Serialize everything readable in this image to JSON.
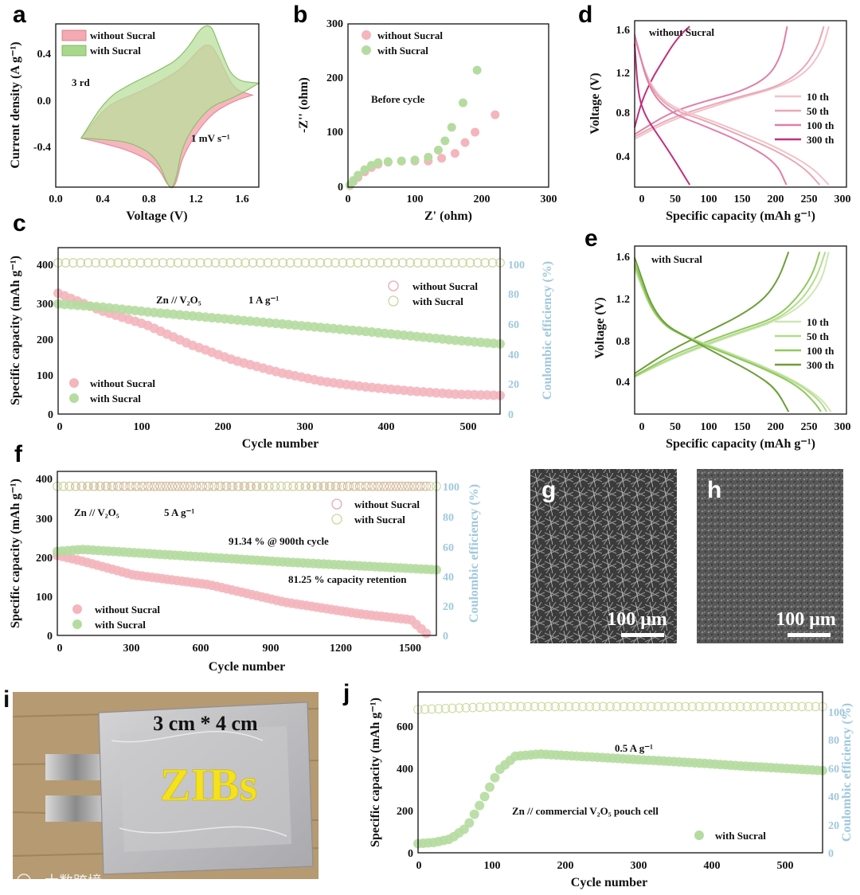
{
  "panels": {
    "a": {
      "label": "a",
      "xlabel": "Voltage (V)",
      "ylabel": "Current density (A g⁻¹)",
      "xticks": [
        "0.0",
        "0.4",
        "0.8",
        "1.2",
        "1.6"
      ],
      "yticks": [
        "0.4",
        "0.0",
        "-0.4"
      ],
      "legend": [
        "without Sucral",
        "with Sucral"
      ],
      "annot_cycle": "3 rd",
      "annot_rate": "1 mV s⁻¹"
    },
    "b": {
      "label": "b",
      "xlabel": "Z' (ohm)",
      "ylabel": "-Z'' (ohm)",
      "xticks": [
        "0",
        "100",
        "200",
        "300"
      ],
      "yticks": [
        "0",
        "100",
        "200",
        "300"
      ],
      "legend": [
        "without Sucral",
        "with Sucral"
      ],
      "annot": "Before cycle"
    },
    "c": {
      "label": "c",
      "xlabel": "Cycle number",
      "ylabel": "Specific capacity (mAh g⁻¹)",
      "y2label": "Coulombic efficiency (%)",
      "xticks": [
        "0",
        "100",
        "200",
        "300",
        "400",
        "500"
      ],
      "yticks": [
        "0",
        "100",
        "200",
        "300",
        "400"
      ],
      "y2ticks": [
        "0",
        "20",
        "40",
        "60",
        "80",
        "100"
      ],
      "legend": [
        "without Sucral",
        "with Sucral"
      ],
      "annot_cell": "Zn // V₂O₅",
      "annot_rate": "1 A g⁻¹"
    },
    "d": {
      "label": "d",
      "xlabel": "Specific capacity (mAh g⁻¹)",
      "ylabel": "Voltage (V)",
      "xticks": [
        "0",
        "50",
        "100",
        "150",
        "200",
        "250",
        "300"
      ],
      "yticks": [
        "0.4",
        "0.8",
        "1.2",
        "1.6"
      ],
      "title": "without Sucral",
      "legend": [
        "10 th",
        "50 th",
        "100 th",
        "300 th"
      ]
    },
    "e": {
      "label": "e",
      "xlabel": "Specific capacity (mAh g⁻¹)",
      "ylabel": "Voltage (V)",
      "xticks": [
        "0",
        "50",
        "100",
        "150",
        "200",
        "250",
        "300"
      ],
      "yticks": [
        "0.4",
        "0.8",
        "1.2",
        "1.6"
      ],
      "title": "with Sucral",
      "legend": [
        "10 th",
        "50 th",
        "100 th",
        "300 th"
      ]
    },
    "f": {
      "label": "f",
      "xlabel": "Cycle number",
      "ylabel": "Specific capacity (mAh g⁻¹)",
      "y2label": "Coulombic efficiency (%)",
      "xticks": [
        "0",
        "300",
        "600",
        "900",
        "1200",
        "1500"
      ],
      "yticks": [
        "0",
        "100",
        "200",
        "300",
        "400"
      ],
      "y2ticks": [
        "0",
        "20",
        "40",
        "60",
        "80",
        "100"
      ],
      "legend": [
        "without Sucral",
        "with Sucral"
      ],
      "annot_cell": "Zn // V₂O₅",
      "annot_rate": "5 A g⁻¹",
      "annot_ce": "91.34 % @ 900th cycle",
      "annot_ret": "81.25 % capacity retention"
    },
    "g": {
      "label": "g",
      "scale": "100 μm"
    },
    "h": {
      "label": "h",
      "scale": "100 μm"
    },
    "i": {
      "label": "i",
      "size": "3 cm * 4 cm",
      "text": "ZIBs"
    },
    "j": {
      "label": "j",
      "xlabel": "Cycle number",
      "ylabel": "Specific capacity (mAh g⁻¹)",
      "y2label": "Coulombic efficiency (%)",
      "xticks": [
        "0",
        "100",
        "200",
        "300",
        "400",
        "500"
      ],
      "yticks": [
        "0",
        "200",
        "400",
        "600"
      ],
      "y2ticks": [
        "0",
        "20",
        "40",
        "60",
        "80",
        "100"
      ],
      "legend": [
        "with Sucral"
      ],
      "annot_rate": "0.5 A g⁻¹",
      "annot_cell": "Zn // commercial V₂O₅    pouch cell"
    }
  },
  "watermark": "大数跨境",
  "colors": {
    "pink": "#f4a9b3",
    "green": "#a9d88c",
    "ce": "#9fc8dc",
    "d_lines": [
      "#f3c1c8",
      "#e9a7b6",
      "#df7fa8",
      "#c0307f"
    ],
    "e_lines": [
      "#cfe6b4",
      "#b3dc8c",
      "#8fc95c",
      "#6e9e3a"
    ]
  },
  "chart_data": [
    {
      "panel": "a",
      "type": "line",
      "title": "",
      "xlabel": "Voltage (V)",
      "ylabel": "Current density (A g-1)",
      "xlim": [
        0,
        1.6
      ],
      "ylim": [
        -0.6,
        0.5
      ],
      "series": [
        {
          "name": "without Sucral",
          "x": [
            0.2,
            0.4,
            0.6,
            0.8,
            0.9,
            0.95,
            1.0,
            1.2,
            1.4,
            1.55,
            1.55,
            1.4,
            1.3,
            1.2,
            1.0,
            0.8,
            0.6,
            0.4,
            0.2
          ],
          "y": [
            -0.27,
            -0.31,
            -0.36,
            -0.45,
            -0.62,
            -0.58,
            -0.38,
            -0.12,
            -0.02,
            0.02,
            0.02,
            0.06,
            0.25,
            0.4,
            0.2,
            0.1,
            0.02,
            -0.05,
            -0.27
          ]
        },
        {
          "name": "with Sucral",
          "x": [
            0.2,
            0.4,
            0.6,
            0.8,
            0.9,
            0.95,
            1.0,
            1.2,
            1.4,
            1.6,
            1.6,
            1.4,
            1.3,
            1.2,
            1.0,
            0.8,
            0.6,
            0.4,
            0.2
          ],
          "y": [
            -0.27,
            -0.28,
            -0.3,
            -0.4,
            -0.63,
            -0.55,
            -0.3,
            -0.06,
            0.0,
            0.1,
            0.1,
            0.12,
            0.32,
            0.55,
            0.28,
            0.18,
            0.1,
            0.0,
            -0.27
          ]
        }
      ]
    },
    {
      "panel": "b",
      "type": "scatter",
      "xlim": [
        0,
        300
      ],
      "ylim": [
        0,
        300
      ],
      "series": [
        {
          "name": "without Sucral",
          "x": [
            3,
            8,
            15,
            25,
            35,
            45,
            60,
            80,
            100,
            120,
            140,
            160,
            175,
            190,
            220
          ],
          "y": [
            3,
            10,
            18,
            28,
            36,
            42,
            46,
            48,
            48,
            48,
            53,
            62,
            82,
            101,
            133
          ]
        },
        {
          "name": "with Sucral",
          "x": [
            3,
            8,
            15,
            25,
            35,
            45,
            60,
            80,
            100,
            120,
            135,
            145,
            155,
            172,
            193
          ],
          "y": [
            4,
            12,
            22,
            32,
            40,
            45,
            47,
            48,
            50,
            55,
            68,
            85,
            110,
            155,
            215
          ]
        }
      ]
    },
    {
      "panel": "c",
      "type": "scatter",
      "xlim": [
        0,
        500
      ],
      "ylim": [
        0,
        420
      ],
      "y2lim": [
        0,
        110
      ],
      "series": [
        {
          "name": "without Sucral",
          "x": [
            0,
            50,
            100,
            150,
            200,
            250,
            300,
            350,
            400,
            450,
            500
          ],
          "y": [
            305,
            260,
            225,
            175,
            135,
            105,
            82,
            68,
            58,
            50,
            47
          ]
        },
        {
          "name": "with Sucral",
          "x": [
            0,
            50,
            100,
            150,
            200,
            250,
            300,
            350,
            400,
            450,
            500
          ],
          "y": [
            278,
            270,
            258,
            248,
            238,
            228,
            218,
            208,
            197,
            186,
            177
          ]
        },
        {
          "name": "without Sucral CE",
          "x": [
            0,
            100,
            200,
            300,
            400,
            500
          ],
          "y": [
            100,
            100,
            100,
            100,
            100,
            100
          ]
        },
        {
          "name": "with Sucral CE",
          "x": [
            0,
            100,
            200,
            300,
            400,
            500
          ],
          "y": [
            100,
            100,
            100,
            100,
            100,
            100
          ]
        }
      ]
    },
    {
      "panel": "d",
      "type": "line",
      "xlim": [
        0,
        300
      ],
      "ylim": [
        0.2,
        1.65
      ],
      "series": [
        {
          "name": "10 th charge",
          "x": [
            0,
            50,
            100,
            150,
            200,
            240,
            265,
            275
          ],
          "y": [
            0.62,
            0.78,
            0.88,
            0.98,
            1.06,
            1.18,
            1.38,
            1.6
          ]
        },
        {
          "name": "50 th charge",
          "x": [
            0,
            50,
            100,
            150,
            200,
            235,
            258,
            268
          ],
          "y": [
            0.64,
            0.8,
            0.9,
            0.99,
            1.07,
            1.2,
            1.4,
            1.6
          ]
        },
        {
          "name": "100 th charge",
          "x": [
            0,
            50,
            100,
            150,
            190,
            208,
            216
          ],
          "y": [
            0.66,
            0.85,
            0.95,
            1.03,
            1.16,
            1.35,
            1.6
          ]
        },
        {
          "name": "300 th charge",
          "x": [
            0,
            10,
            25,
            40,
            55,
            70,
            78
          ],
          "y": [
            0.72,
            0.95,
            1.15,
            1.3,
            1.45,
            1.56,
            1.6
          ]
        },
        {
          "name": "10 th discharge",
          "x": [
            0,
            20,
            50,
            100,
            150,
            200,
            250,
            275
          ],
          "y": [
            1.5,
            1.1,
            0.9,
            0.8,
            0.68,
            0.55,
            0.38,
            0.22
          ]
        },
        {
          "name": "50 th discharge",
          "x": [
            0,
            20,
            50,
            100,
            150,
            200,
            240,
            262
          ],
          "y": [
            1.5,
            1.08,
            0.88,
            0.78,
            0.65,
            0.52,
            0.37,
            0.22
          ]
        },
        {
          "name": "100 th discharge",
          "x": [
            0,
            20,
            50,
            100,
            150,
            200,
            215
          ],
          "y": [
            1.53,
            1.05,
            0.85,
            0.73,
            0.6,
            0.42,
            0.22
          ]
        },
        {
          "name": "300 th discharge",
          "x": [
            0,
            5,
            15,
            30,
            50,
            70,
            78
          ],
          "y": [
            1.45,
            1.0,
            0.82,
            0.68,
            0.5,
            0.3,
            0.22
          ]
        }
      ]
    },
    {
      "panel": "e",
      "type": "line",
      "xlim": [
        0,
        300
      ],
      "ylim": [
        0.2,
        1.65
      ],
      "series": [
        {
          "name": "10 th charge",
          "x": [
            0,
            50,
            100,
            150,
            200,
            240,
            265,
            275
          ],
          "y": [
            0.52,
            0.67,
            0.79,
            0.9,
            1.0,
            1.15,
            1.35,
            1.6
          ]
        },
        {
          "name": "50 th charge",
          "x": [
            0,
            50,
            100,
            150,
            200,
            235,
            258,
            270
          ],
          "y": [
            0.52,
            0.68,
            0.8,
            0.91,
            1.01,
            1.17,
            1.38,
            1.6
          ]
        },
        {
          "name": "100 th charge",
          "x": [
            0,
            50,
            100,
            150,
            200,
            230,
            252,
            262
          ],
          "y": [
            0.53,
            0.7,
            0.82,
            0.93,
            1.03,
            1.2,
            1.4,
            1.6
          ]
        },
        {
          "name": "300 th charge",
          "x": [
            0,
            50,
            100,
            150,
            185,
            205,
            218
          ],
          "y": [
            0.55,
            0.75,
            0.9,
            1.05,
            1.2,
            1.38,
            1.6
          ]
        },
        {
          "name": "10 th discharge",
          "x": [
            0,
            30,
            80,
            130,
            180,
            230,
            265,
            278
          ],
          "y": [
            1.45,
            1.0,
            0.85,
            0.74,
            0.62,
            0.48,
            0.33,
            0.22
          ]
        },
        {
          "name": "50 th discharge",
          "x": [
            0,
            30,
            80,
            130,
            180,
            230,
            262,
            272
          ],
          "y": [
            1.47,
            1.0,
            0.85,
            0.73,
            0.61,
            0.47,
            0.32,
            0.22
          ]
        },
        {
          "name": "100 th discharge",
          "x": [
            0,
            30,
            80,
            130,
            180,
            230,
            255,
            264
          ],
          "y": [
            1.5,
            1.0,
            0.84,
            0.72,
            0.6,
            0.45,
            0.3,
            0.22
          ]
        },
        {
          "name": "300 th discharge",
          "x": [
            0,
            30,
            80,
            130,
            170,
            200,
            218
          ],
          "y": [
            1.55,
            1.02,
            0.84,
            0.68,
            0.55,
            0.42,
            0.22
          ]
        }
      ]
    },
    {
      "panel": "f",
      "type": "scatter",
      "xlim": [
        0,
        1500
      ],
      "ylim": [
        0,
        420
      ],
      "y2lim": [
        0,
        110
      ],
      "series": [
        {
          "name": "without Sucral",
          "x": [
            0,
            100,
            300,
            600,
            900,
            1200,
            1400,
            1460
          ],
          "y": [
            205,
            190,
            155,
            130,
            85,
            55,
            40,
            5
          ]
        },
        {
          "name": "with Sucral",
          "x": [
            0,
            100,
            300,
            600,
            900,
            1200,
            1500
          ],
          "y": [
            215,
            220,
            212,
            200,
            188,
            178,
            168
          ]
        },
        {
          "name": "without Sucral CE",
          "x": [
            0,
            300,
            600,
            900,
            1200,
            1460
          ],
          "y": [
            100,
            100,
            100,
            100,
            100,
            100
          ]
        },
        {
          "name": "with Sucral CE",
          "x": [
            0,
            300,
            600,
            900,
            1200,
            1500
          ],
          "y": [
            100,
            100,
            100,
            100,
            100,
            100
          ]
        }
      ]
    },
    {
      "panel": "j",
      "type": "scatter",
      "xlim": [
        0,
        500
      ],
      "ylim": [
        0,
        700
      ],
      "y2lim": [
        0,
        110
      ],
      "series": [
        {
          "name": "with Sucral",
          "x": [
            0,
            20,
            40,
            60,
            80,
            100,
            120,
            150,
            200,
            250,
            300,
            350,
            400,
            450,
            500
          ],
          "y": [
            40,
            45,
            60,
            110,
            230,
            360,
            420,
            430,
            420,
            410,
            400,
            390,
            378,
            368,
            358
          ]
        },
        {
          "name": "with Sucral CE",
          "x": [
            0,
            100,
            200,
            300,
            400,
            500
          ],
          "y": [
            98,
            100,
            100,
            100,
            100,
            100
          ]
        }
      ]
    }
  ]
}
